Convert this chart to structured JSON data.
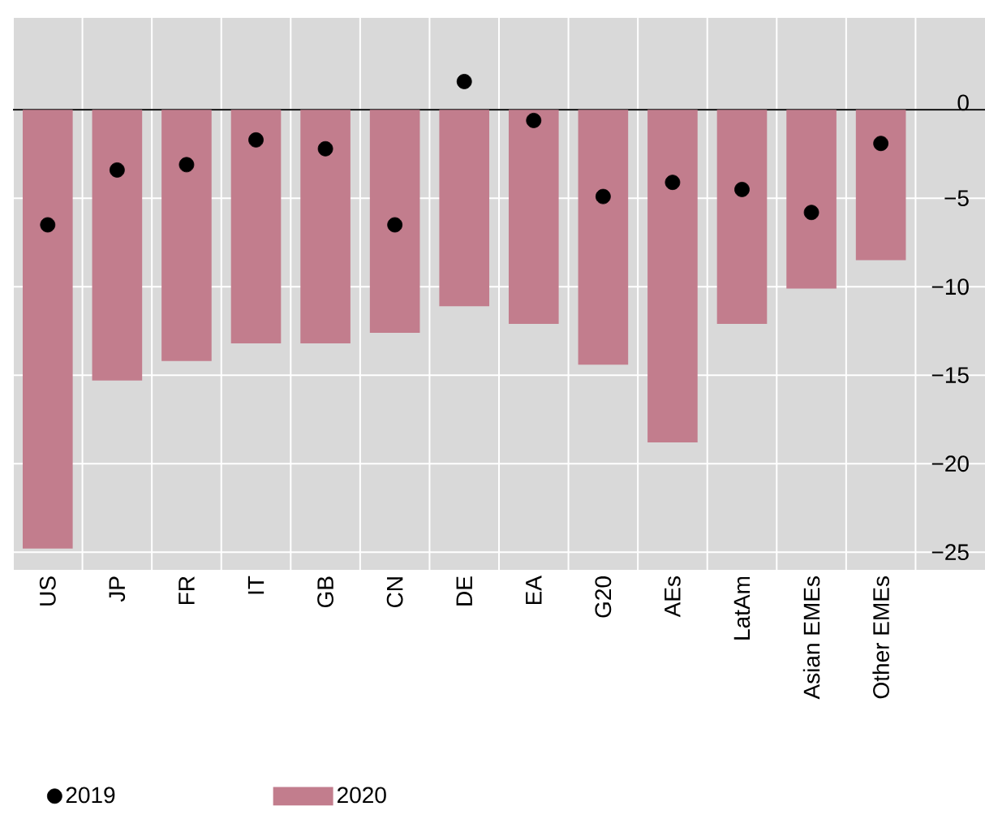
{
  "chart_data": {
    "type": "bar",
    "categories": [
      "US",
      "JP",
      "FR",
      "IT",
      "GB",
      "CN",
      "DE",
      "EA",
      "G20",
      "AEs",
      "LatAm",
      "Asian EMEs",
      "Other EMEs"
    ],
    "series": [
      {
        "name": "2019",
        "type": "scatter",
        "marker": "circle",
        "color": "#000000",
        "values": [
          -6.5,
          -3.4,
          -3.1,
          -1.7,
          -2.2,
          -6.5,
          1.6,
          -0.6,
          -4.9,
          -4.1,
          -4.5,
          -5.8,
          -1.9
        ]
      },
      {
        "name": "2020",
        "type": "bar",
        "color": "#c27d8d",
        "values": [
          -24.8,
          -15.3,
          -14.2,
          -13.2,
          -13.2,
          -12.6,
          -11.1,
          -12.1,
          -14.4,
          -18.8,
          -12.1,
          -10.1,
          -8.5
        ]
      }
    ],
    "ylim": [
      -26,
      5.2
    ],
    "yticks": [
      {
        "value": -25,
        "label": "−25"
      },
      {
        "value": -20,
        "label": "−20"
      },
      {
        "value": -15,
        "label": "−15"
      },
      {
        "value": -10,
        "label": "−10"
      },
      {
        "value": -5,
        "label": "−5"
      },
      0
    ],
    "ref_lines": [
      {
        "axis": "y",
        "value": 0,
        "color": "#000000"
      }
    ],
    "grid": true,
    "legend": "bottom"
  }
}
